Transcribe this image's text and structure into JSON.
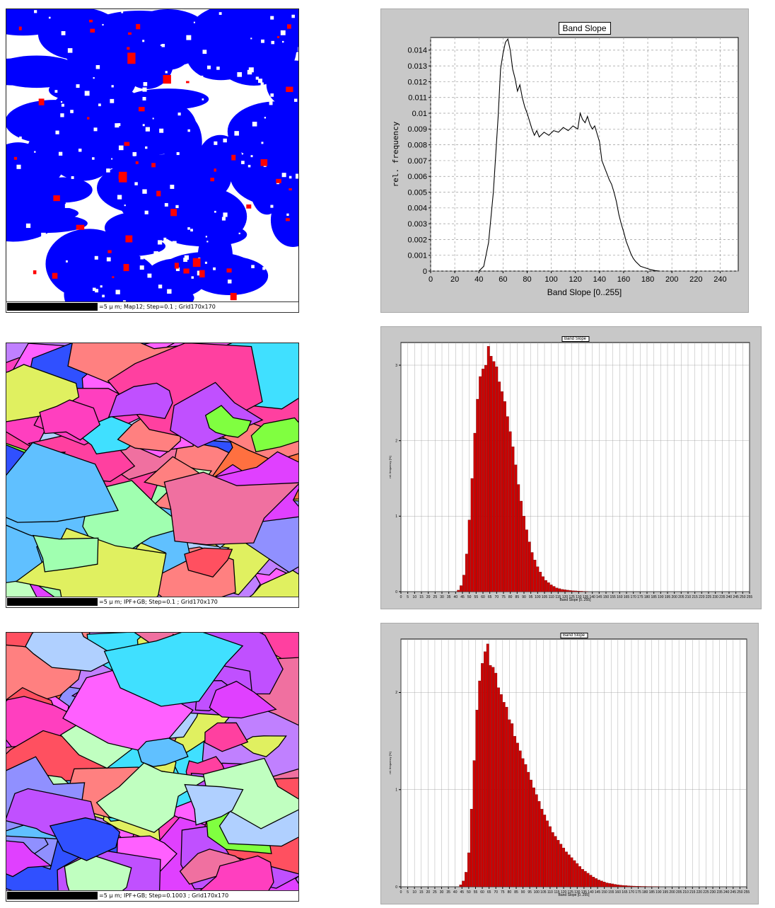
{
  "maps": [
    {
      "caption": "=5 μ m; Map12; Step=0.1 ; Grid170x170",
      "palette": "phase",
      "seed": 11
    },
    {
      "caption": "=5 μ m; IPF+GB; Step=0.1 ; Grid170x170",
      "palette": "ipf",
      "seed": 23
    },
    {
      "caption": "=5 μ m; IPF+GB; Step=0.1003 ; Grid170x170",
      "palette": "ipf",
      "seed": 37
    }
  ],
  "colors": {
    "phase_primary": "#0000ff",
    "phase_secondary": "#ff0000",
    "phase_background": "#ffffff",
    "hist_bar": "#cc0000",
    "panel_bg": "#c8c8c8"
  },
  "chart_data": [
    {
      "type": "line",
      "title": "Band Slope",
      "xlabel": "Band Slope [0..255]",
      "ylabel": "rel. frequency",
      "xlim": [
        0,
        255
      ],
      "ylim": [
        0,
        0.0148
      ],
      "xticks": [
        0,
        20,
        40,
        60,
        80,
        100,
        120,
        140,
        160,
        180,
        200,
        220,
        240
      ],
      "yticks": [
        0,
        0.001,
        0.002,
        0.003,
        0.004,
        0.005,
        0.006,
        0.007,
        0.008,
        0.009,
        0.01,
        0.011,
        0.012,
        0.013,
        0.014
      ],
      "ytick_labels": [
        "0",
        "0.001",
        "0.002",
        "0.003",
        "0.004",
        "0.005",
        "0.006",
        "0.007",
        "0.008",
        "0.009",
        "0.01",
        "0.011",
        "0.012",
        "0.013",
        "0.014"
      ],
      "grid": true,
      "x": [
        40,
        44,
        48,
        52,
        56,
        58,
        60,
        62,
        64,
        66,
        68,
        70,
        72,
        74,
        76,
        78,
        80,
        82,
        84,
        86,
        88,
        90,
        94,
        98,
        102,
        106,
        110,
        114,
        118,
        122,
        124,
        126,
        128,
        130,
        132,
        134,
        136,
        138,
        140,
        142,
        144,
        146,
        148,
        150,
        152,
        154,
        156,
        158,
        160,
        162,
        164,
        166,
        168,
        170,
        174,
        178,
        182,
        186,
        190
      ],
      "y": [
        0,
        0.0003,
        0.0018,
        0.005,
        0.0098,
        0.0128,
        0.0138,
        0.0145,
        0.0147,
        0.014,
        0.0128,
        0.0122,
        0.0114,
        0.0118,
        0.011,
        0.0104,
        0.01,
        0.0095,
        0.009,
        0.0086,
        0.0089,
        0.0085,
        0.0088,
        0.0086,
        0.0089,
        0.0088,
        0.0091,
        0.0089,
        0.0092,
        0.009,
        0.01,
        0.0096,
        0.0094,
        0.0098,
        0.0093,
        0.009,
        0.0092,
        0.0087,
        0.0082,
        0.007,
        0.0066,
        0.0062,
        0.0058,
        0.0055,
        0.005,
        0.0044,
        0.0036,
        0.003,
        0.0025,
        0.0019,
        0.0015,
        0.0011,
        0.0008,
        0.0006,
        0.0003,
        0.0002,
        0.0001,
        3e-05,
        0
      ]
    },
    {
      "type": "bar",
      "title": "Band Slope",
      "xlabel": "Band Slope [0..255]",
      "ylabel": "rel. frequency [%]",
      "xlim": [
        0,
        255
      ],
      "ylim": [
        0,
        3.3
      ],
      "xticks": [
        0,
        5,
        10,
        15,
        20,
        25,
        30,
        35,
        40,
        45,
        50,
        55,
        60,
        65,
        70,
        75,
        80,
        85,
        90,
        95,
        100,
        105,
        110,
        115,
        120,
        125,
        130,
        135,
        140,
        145,
        150,
        155,
        160,
        165,
        170,
        175,
        180,
        185,
        190,
        195,
        200,
        205,
        210,
        215,
        220,
        225,
        230,
        235,
        240,
        245,
        250,
        255
      ],
      "yticks": [
        0,
        1,
        2,
        3
      ],
      "grid": true,
      "x": [
        42,
        44,
        46,
        48,
        50,
        52,
        54,
        56,
        58,
        60,
        62,
        64,
        66,
        68,
        70,
        72,
        74,
        76,
        78,
        80,
        82,
        84,
        86,
        88,
        90,
        92,
        94,
        96,
        98,
        100,
        102,
        104,
        106,
        108,
        110,
        112,
        114,
        116,
        118,
        120,
        122,
        124,
        126,
        128,
        130,
        132,
        134,
        136
      ],
      "values": [
        0.02,
        0.08,
        0.22,
        0.5,
        0.95,
        1.5,
        2.1,
        2.55,
        2.85,
        2.95,
        3.0,
        3.25,
        3.12,
        3.05,
        2.98,
        2.78,
        2.65,
        2.52,
        2.32,
        2.12,
        1.92,
        1.68,
        1.42,
        1.2,
        1.0,
        0.82,
        0.66,
        0.52,
        0.42,
        0.33,
        0.26,
        0.2,
        0.15,
        0.12,
        0.09,
        0.07,
        0.05,
        0.04,
        0.03,
        0.025,
        0.02,
        0.015,
        0.012,
        0.01,
        0.008,
        0.006,
        0.004,
        0.003
      ]
    },
    {
      "type": "bar",
      "title": "Band Slope",
      "xlabel": "Band Slope [0..255]",
      "ylabel": "rel. frequency [%]",
      "xlim": [
        0,
        255
      ],
      "ylim": [
        0,
        2.55
      ],
      "xticks": [
        0,
        5,
        10,
        15,
        20,
        25,
        30,
        35,
        40,
        45,
        50,
        55,
        60,
        65,
        70,
        75,
        80,
        85,
        90,
        95,
        100,
        105,
        110,
        115,
        120,
        125,
        130,
        135,
        140,
        145,
        150,
        155,
        160,
        165,
        170,
        175,
        180,
        185,
        190,
        195,
        200,
        205,
        210,
        215,
        220,
        225,
        230,
        235,
        240,
        245,
        250,
        255
      ],
      "yticks": [
        0,
        1,
        2
      ],
      "grid": true,
      "x": [
        44,
        46,
        48,
        50,
        52,
        54,
        56,
        58,
        60,
        62,
        64,
        66,
        68,
        70,
        72,
        74,
        76,
        78,
        80,
        82,
        84,
        86,
        88,
        90,
        92,
        94,
        96,
        98,
        100,
        102,
        104,
        106,
        108,
        110,
        112,
        114,
        116,
        118,
        120,
        122,
        124,
        126,
        128,
        130,
        132,
        134,
        136,
        138,
        140,
        142,
        144,
        146,
        148,
        150,
        152,
        154,
        156,
        158,
        160,
        162,
        164,
        166,
        168,
        170,
        172,
        174,
        176,
        178,
        180,
        182,
        184,
        186,
        188,
        190
      ],
      "values": [
        0.02,
        0.06,
        0.15,
        0.35,
        0.8,
        1.3,
        1.82,
        2.12,
        2.3,
        2.42,
        2.5,
        2.28,
        2.26,
        2.2,
        2.05,
        1.98,
        1.9,
        1.85,
        1.72,
        1.68,
        1.55,
        1.48,
        1.4,
        1.32,
        1.26,
        1.18,
        1.1,
        1.02,
        0.95,
        0.88,
        0.8,
        0.74,
        0.68,
        0.62,
        0.56,
        0.52,
        0.48,
        0.44,
        0.4,
        0.36,
        0.33,
        0.3,
        0.27,
        0.24,
        0.21,
        0.18,
        0.16,
        0.14,
        0.12,
        0.1,
        0.085,
        0.07,
        0.06,
        0.05,
        0.04,
        0.035,
        0.03,
        0.025,
        0.02,
        0.017,
        0.014,
        0.012,
        0.01,
        0.008,
        0.007,
        0.006,
        0.005,
        0.004,
        0.004,
        0.003,
        0.003,
        0.002,
        0.002,
        0.001
      ]
    }
  ]
}
